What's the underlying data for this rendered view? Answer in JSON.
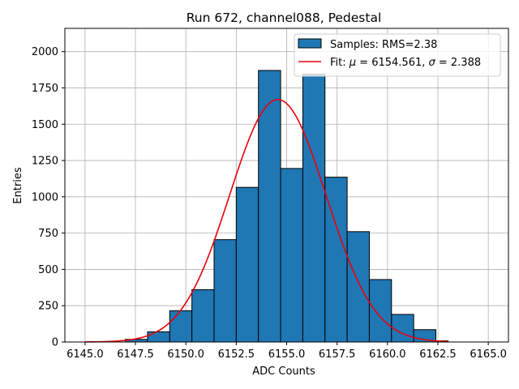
{
  "chart_data": {
    "type": "histogram",
    "title": "Run 672, channel088, Pedestal",
    "xlabel": "ADC Counts",
    "ylabel": "Entries",
    "xlim": [
      6144.0,
      6166.0
    ],
    "ylim": [
      0,
      2160
    ],
    "grid": true,
    "legend_position": "top-right",
    "xticks": [
      6145.0,
      6147.5,
      6150.0,
      6152.5,
      6155.0,
      6157.5,
      6160.0,
      6162.5,
      6165.0
    ],
    "xtick_labels": [
      "6145.0",
      "6147.5",
      "6150.0",
      "6152.5",
      "6155.0",
      "6157.5",
      "6160.0",
      "6162.5",
      "6165.0"
    ],
    "yticks": [
      0,
      250,
      500,
      750,
      1000,
      1250,
      1500,
      1750,
      2000
    ],
    "ytick_labels": [
      "0",
      "250",
      "500",
      "750",
      "1000",
      "1250",
      "1500",
      "1750",
      "2000"
    ],
    "bins": [
      {
        "x0": 6147.0,
        "x1": 6148.1,
        "value": 18
      },
      {
        "x0": 6148.1,
        "x1": 6149.2,
        "value": 70
      },
      {
        "x0": 6149.2,
        "x1": 6150.3,
        "value": 215
      },
      {
        "x0": 6150.3,
        "x1": 6151.4,
        "value": 360
      },
      {
        "x0": 6151.4,
        "x1": 6152.5,
        "value": 705
      },
      {
        "x0": 6152.5,
        "x1": 6153.6,
        "value": 1065
      },
      {
        "x0": 6153.6,
        "x1": 6154.7,
        "value": 1870
      },
      {
        "x0": 6154.7,
        "x1": 6155.8,
        "value": 1195
      },
      {
        "x0": 6155.8,
        "x1": 6156.9,
        "value": 1845
      },
      {
        "x0": 6156.9,
        "x1": 6158.0,
        "value": 1135
      },
      {
        "x0": 6158.0,
        "x1": 6159.1,
        "value": 760
      },
      {
        "x0": 6159.1,
        "x1": 6160.2,
        "value": 430
      },
      {
        "x0": 6160.2,
        "x1": 6161.3,
        "value": 190
      },
      {
        "x0": 6161.3,
        "x1": 6162.4,
        "value": 85
      },
      {
        "x0": 6162.4,
        "x1": 6163.0,
        "value": 8
      }
    ],
    "fit": {
      "mu": 6154.561,
      "sigma": 2.388,
      "amplitude": 1670,
      "x_range": [
        6145.0,
        6163.0
      ]
    },
    "series": [
      {
        "name": "Samples: RMS=2.38",
        "kind": "bars",
        "color": "#1f77b4"
      },
      {
        "name": "Fit: μ = 6154.561, σ = 2.388",
        "kind": "line",
        "color": "#e8000b"
      }
    ],
    "legend": {
      "samples_label": "Samples: RMS=2.38",
      "fit_prefix": "Fit: ",
      "fit_mu_symbol": "μ",
      "fit_mu_value": " = 6154.561, ",
      "fit_sigma_symbol": "σ",
      "fit_sigma_value": " = 2.388"
    },
    "colors": {
      "bar_fill": "#1f77b4",
      "bar_edge": "#000000",
      "fit_line": "#e8000b",
      "grid": "#b0b0b0"
    }
  }
}
